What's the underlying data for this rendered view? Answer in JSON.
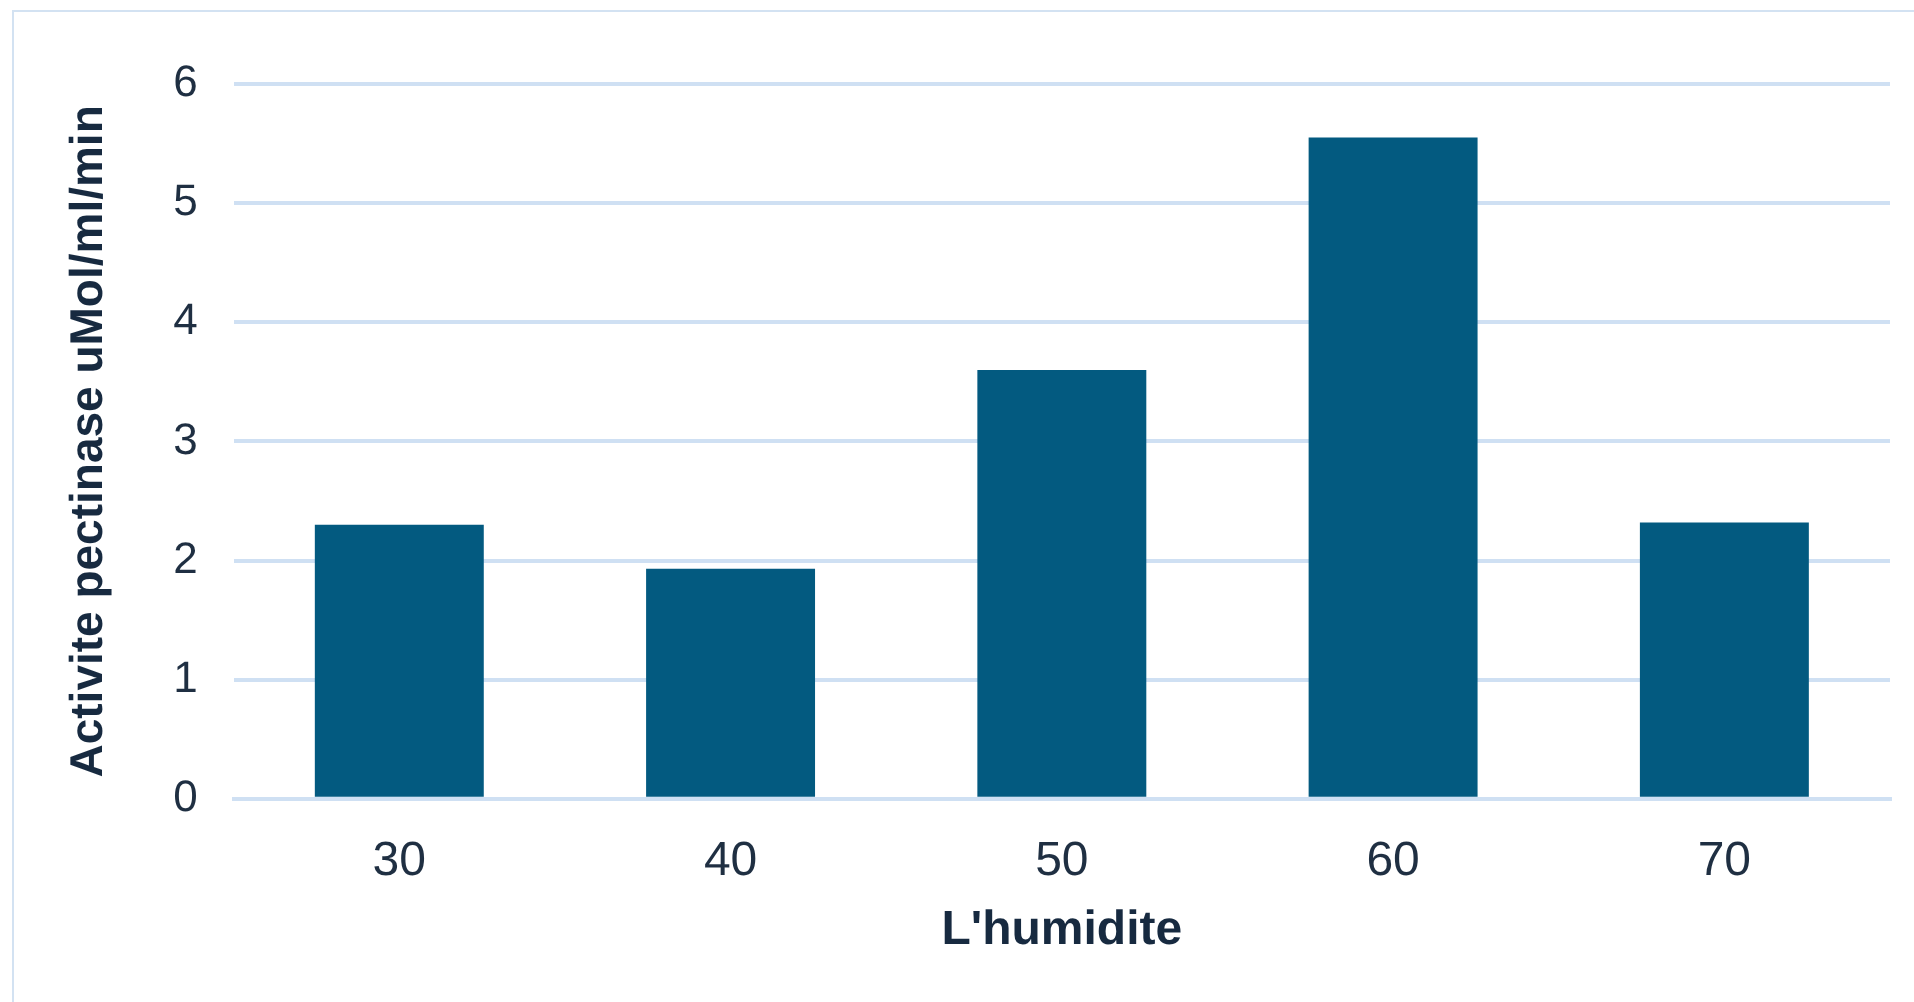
{
  "chart_data": {
    "type": "bar",
    "xlabel": "L'humidite",
    "ylabel": "Activite pectinase uMol/ml/min",
    "categories": [
      "30",
      "40",
      "50",
      "60",
      "70"
    ],
    "values": [
      2.3,
      1.93,
      3.6,
      5.55,
      2.32
    ],
    "color": "#035a80",
    "ylim": [
      0,
      6
    ],
    "yticks": [
      0,
      1,
      2,
      3,
      4,
      5,
      6
    ],
    "grid": "y"
  }
}
